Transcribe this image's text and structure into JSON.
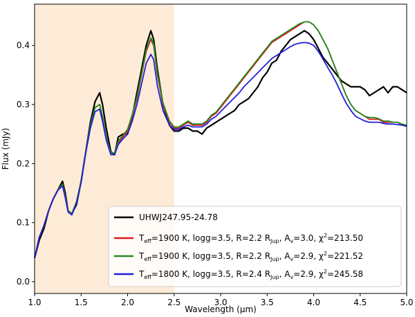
{
  "chart_data": {
    "type": "line",
    "xlabel": "Wavelength (μm)",
    "ylabel": "Flux (mJy)",
    "xlim": [
      1.0,
      5.0
    ],
    "ylim": [
      -0.02,
      0.47
    ],
    "xticks": [
      "1.0",
      "1.5",
      "2.0",
      "2.5",
      "3.0",
      "3.5",
      "4.0",
      "4.5",
      "5.0"
    ],
    "xtick_values": [
      1.0,
      1.5,
      2.0,
      2.5,
      3.0,
      3.5,
      4.0,
      4.5,
      5.0
    ],
    "yticks": [
      "0.0",
      "0.1",
      "0.2",
      "0.3",
      "0.4"
    ],
    "ytick_values": [
      0.0,
      0.1,
      0.2,
      0.3,
      0.4
    ],
    "shaded_region": {
      "x0": 1.0,
      "x1": 2.5,
      "color": "#fdebd7"
    },
    "grid": false,
    "legend_position": "lower-right",
    "series": [
      {
        "name": "UHWJ247.95-24.78",
        "color": "#000000",
        "x": [
          1.0,
          1.05,
          1.1,
          1.15,
          1.2,
          1.25,
          1.3,
          1.33,
          1.36,
          1.4,
          1.45,
          1.5,
          1.55,
          1.6,
          1.65,
          1.7,
          1.73,
          1.77,
          1.82,
          1.86,
          1.9,
          1.95,
          2.0,
          2.05,
          2.1,
          2.15,
          2.2,
          2.25,
          2.28,
          2.32,
          2.38,
          2.45,
          2.5,
          2.55,
          2.6,
          2.65,
          2.7,
          2.75,
          2.8,
          2.85,
          2.9,
          2.95,
          3.0,
          3.05,
          3.1,
          3.15,
          3.2,
          3.25,
          3.3,
          3.35,
          3.4,
          3.45,
          3.5,
          3.55,
          3.6,
          3.65,
          3.7,
          3.75,
          3.8,
          3.85,
          3.9,
          3.95,
          4.0,
          4.05,
          4.1,
          4.15,
          4.2,
          4.25,
          4.3,
          4.35,
          4.4,
          4.45,
          4.5,
          4.55,
          4.6,
          4.65,
          4.7,
          4.75,
          4.8,
          4.85,
          4.9,
          4.95,
          5.0
        ],
        "y": [
          0.04,
          0.07,
          0.09,
          0.12,
          0.14,
          0.155,
          0.17,
          0.15,
          0.12,
          0.115,
          0.13,
          0.17,
          0.22,
          0.27,
          0.305,
          0.32,
          0.3,
          0.26,
          0.22,
          0.215,
          0.245,
          0.25,
          0.25,
          0.28,
          0.32,
          0.36,
          0.4,
          0.425,
          0.41,
          0.36,
          0.3,
          0.265,
          0.255,
          0.255,
          0.26,
          0.26,
          0.255,
          0.255,
          0.25,
          0.26,
          0.265,
          0.27,
          0.275,
          0.28,
          0.285,
          0.29,
          0.3,
          0.305,
          0.31,
          0.32,
          0.33,
          0.345,
          0.355,
          0.37,
          0.375,
          0.39,
          0.4,
          0.41,
          0.415,
          0.42,
          0.425,
          0.42,
          0.41,
          0.395,
          0.38,
          0.37,
          0.36,
          0.35,
          0.34,
          0.335,
          0.33,
          0.33,
          0.33,
          0.325,
          0.315,
          0.32,
          0.325,
          0.33,
          0.32,
          0.33,
          0.33,
          0.325,
          0.32
        ]
      },
      {
        "name": "1900 K, logg=3.5, R=2.2 RJup, Av=3.0, χ2=213.50",
        "color": "#e41a1c",
        "x": [
          1.0,
          1.05,
          1.1,
          1.15,
          1.2,
          1.25,
          1.3,
          1.33,
          1.36,
          1.4,
          1.45,
          1.5,
          1.55,
          1.6,
          1.65,
          1.7,
          1.73,
          1.77,
          1.82,
          1.86,
          1.9,
          1.95,
          2.0,
          2.05,
          2.1,
          2.15,
          2.2,
          2.25,
          2.28,
          2.32,
          2.38,
          2.45,
          2.5,
          2.55,
          2.6,
          2.65,
          2.7,
          2.75,
          2.8,
          2.85,
          2.9,
          2.95,
          3.0,
          3.05,
          3.1,
          3.15,
          3.2,
          3.25,
          3.3,
          3.35,
          3.4,
          3.45,
          3.5,
          3.55,
          3.6,
          3.65,
          3.7,
          3.75,
          3.8,
          3.85,
          3.9,
          3.95,
          4.0,
          4.05,
          4.1,
          4.15,
          4.2,
          4.25,
          4.3,
          4.35,
          4.4,
          4.45,
          4.5,
          4.55,
          4.6,
          4.65,
          4.7,
          4.75,
          4.8,
          4.85,
          4.9,
          4.95,
          5.0
        ],
        "y": [
          0.04,
          0.075,
          0.095,
          0.12,
          0.14,
          0.155,
          0.165,
          0.145,
          0.12,
          0.115,
          0.135,
          0.17,
          0.22,
          0.265,
          0.295,
          0.3,
          0.28,
          0.245,
          0.215,
          0.215,
          0.235,
          0.245,
          0.255,
          0.28,
          0.31,
          0.35,
          0.39,
          0.41,
          0.4,
          0.35,
          0.3,
          0.27,
          0.26,
          0.26,
          0.265,
          0.27,
          0.265,
          0.265,
          0.265,
          0.27,
          0.28,
          0.285,
          0.295,
          0.305,
          0.315,
          0.325,
          0.335,
          0.345,
          0.355,
          0.365,
          0.375,
          0.385,
          0.395,
          0.405,
          0.41,
          0.415,
          0.42,
          0.425,
          0.43,
          0.435,
          0.44,
          0.44,
          0.435,
          0.425,
          0.41,
          0.395,
          0.375,
          0.355,
          0.335,
          0.315,
          0.3,
          0.29,
          0.285,
          0.28,
          0.275,
          0.275,
          0.275,
          0.27,
          0.27,
          0.27,
          0.27,
          0.265,
          0.265
        ]
      },
      {
        "name": "1900 K, logg=3.5, R=2.2 RJup, Av=2.9, χ2=221.52",
        "color": "#228b22",
        "x": [
          1.0,
          1.05,
          1.1,
          1.15,
          1.2,
          1.25,
          1.3,
          1.33,
          1.36,
          1.4,
          1.45,
          1.5,
          1.55,
          1.6,
          1.65,
          1.7,
          1.73,
          1.77,
          1.82,
          1.86,
          1.9,
          1.95,
          2.0,
          2.05,
          2.1,
          2.15,
          2.2,
          2.25,
          2.28,
          2.32,
          2.38,
          2.45,
          2.5,
          2.55,
          2.6,
          2.65,
          2.7,
          2.75,
          2.8,
          2.85,
          2.9,
          2.95,
          3.0,
          3.05,
          3.1,
          3.15,
          3.2,
          3.25,
          3.3,
          3.35,
          3.4,
          3.45,
          3.5,
          3.55,
          3.6,
          3.65,
          3.7,
          3.75,
          3.8,
          3.85,
          3.9,
          3.95,
          4.0,
          4.05,
          4.1,
          4.15,
          4.2,
          4.25,
          4.3,
          4.35,
          4.4,
          4.45,
          4.5,
          4.55,
          4.6,
          4.65,
          4.7,
          4.75,
          4.8,
          4.85,
          4.9,
          4.95,
          5.0
        ],
        "y": [
          0.04,
          0.075,
          0.095,
          0.12,
          0.14,
          0.155,
          0.165,
          0.145,
          0.12,
          0.115,
          0.135,
          0.17,
          0.22,
          0.265,
          0.295,
          0.3,
          0.28,
          0.245,
          0.218,
          0.218,
          0.238,
          0.248,
          0.258,
          0.283,
          0.313,
          0.353,
          0.393,
          0.413,
          0.403,
          0.353,
          0.303,
          0.272,
          0.262,
          0.262,
          0.267,
          0.272,
          0.267,
          0.267,
          0.267,
          0.272,
          0.282,
          0.287,
          0.297,
          0.307,
          0.317,
          0.327,
          0.337,
          0.347,
          0.357,
          0.367,
          0.377,
          0.387,
          0.397,
          0.407,
          0.412,
          0.417,
          0.422,
          0.427,
          0.432,
          0.437,
          0.44,
          0.44,
          0.435,
          0.425,
          0.41,
          0.395,
          0.375,
          0.355,
          0.335,
          0.315,
          0.3,
          0.29,
          0.285,
          0.28,
          0.278,
          0.278,
          0.276,
          0.272,
          0.272,
          0.27,
          0.27,
          0.267,
          0.265
        ]
      },
      {
        "name": "1800 K, logg=3.5, R=2.4 RJup, Av=2.9, χ2=245.58",
        "color": "#1f1fdc",
        "x": [
          1.0,
          1.05,
          1.1,
          1.15,
          1.2,
          1.25,
          1.3,
          1.33,
          1.36,
          1.4,
          1.45,
          1.5,
          1.55,
          1.6,
          1.65,
          1.7,
          1.73,
          1.77,
          1.82,
          1.86,
          1.9,
          1.95,
          2.0,
          2.05,
          2.1,
          2.15,
          2.2,
          2.25,
          2.28,
          2.32,
          2.38,
          2.45,
          2.5,
          2.55,
          2.6,
          2.65,
          2.7,
          2.75,
          2.8,
          2.85,
          2.9,
          2.95,
          3.0,
          3.05,
          3.1,
          3.15,
          3.2,
          3.25,
          3.3,
          3.35,
          3.4,
          3.45,
          3.5,
          3.55,
          3.6,
          3.65,
          3.7,
          3.75,
          3.8,
          3.85,
          3.9,
          3.95,
          4.0,
          4.05,
          4.1,
          4.15,
          4.2,
          4.25,
          4.3,
          4.35,
          4.4,
          4.45,
          4.5,
          4.55,
          4.6,
          4.65,
          4.7,
          4.75,
          4.8,
          4.85,
          4.9,
          4.95,
          5.0
        ],
        "y": [
          0.04,
          0.075,
          0.095,
          0.12,
          0.14,
          0.155,
          0.162,
          0.142,
          0.118,
          0.113,
          0.132,
          0.168,
          0.218,
          0.26,
          0.288,
          0.292,
          0.272,
          0.24,
          0.215,
          0.215,
          0.232,
          0.242,
          0.25,
          0.272,
          0.3,
          0.335,
          0.37,
          0.385,
          0.376,
          0.332,
          0.29,
          0.265,
          0.258,
          0.258,
          0.262,
          0.265,
          0.262,
          0.262,
          0.262,
          0.267,
          0.275,
          0.28,
          0.288,
          0.296,
          0.304,
          0.312,
          0.32,
          0.33,
          0.338,
          0.346,
          0.354,
          0.362,
          0.37,
          0.378,
          0.383,
          0.388,
          0.393,
          0.398,
          0.402,
          0.404,
          0.405,
          0.404,
          0.4,
          0.39,
          0.377,
          0.363,
          0.35,
          0.335,
          0.318,
          0.302,
          0.29,
          0.28,
          0.276,
          0.272,
          0.27,
          0.27,
          0.27,
          0.268,
          0.267,
          0.267,
          0.266,
          0.265,
          0.263
        ]
      }
    ],
    "legend": [
      {
        "label": "UHWJ247.95-24.78",
        "color": "#000000"
      },
      {
        "label": "T_eff=1900 K, logg=3.5, R=2.2 R_Jup, A_v=3.0, χ^2=213.50",
        "color": "#e41a1c"
      },
      {
        "label": "T_eff=1900 K, logg=3.5, R=2.2 R_Jup, A_v=2.9, χ^2=221.52",
        "color": "#228b22"
      },
      {
        "label": "T_eff=1800 K, logg=3.5, R=2.4 R_Jup, A_v=2.9, χ^2=245.58",
        "color": "#1f1fdc"
      }
    ]
  },
  "legend_text": {
    "obs": "UHWJ247.95-24.78",
    "m1": {
      "teff": "1900 K",
      "logg": "3.5",
      "r": "2.2",
      "av": "3.0",
      "chi2": "213.50"
    },
    "m2": {
      "teff": "1900 K",
      "logg": "3.5",
      "r": "2.2",
      "av": "2.9",
      "chi2": "221.52"
    },
    "m3": {
      "teff": "1800 K",
      "logg": "3.5",
      "r": "2.4",
      "av": "2.9",
      "chi2": "245.58"
    },
    "parts": {
      "T": "T",
      "eff": "eff",
      "eq_logg": "=",
      "logg_lbl": ", logg=",
      "r_lbl": ", R=",
      "rjup_r": " R",
      "jup": "Jup",
      "av_lbl": ", A",
      "v": "v",
      "eq": "=",
      "chi_lbl": ", χ",
      "sq": "2"
    }
  }
}
